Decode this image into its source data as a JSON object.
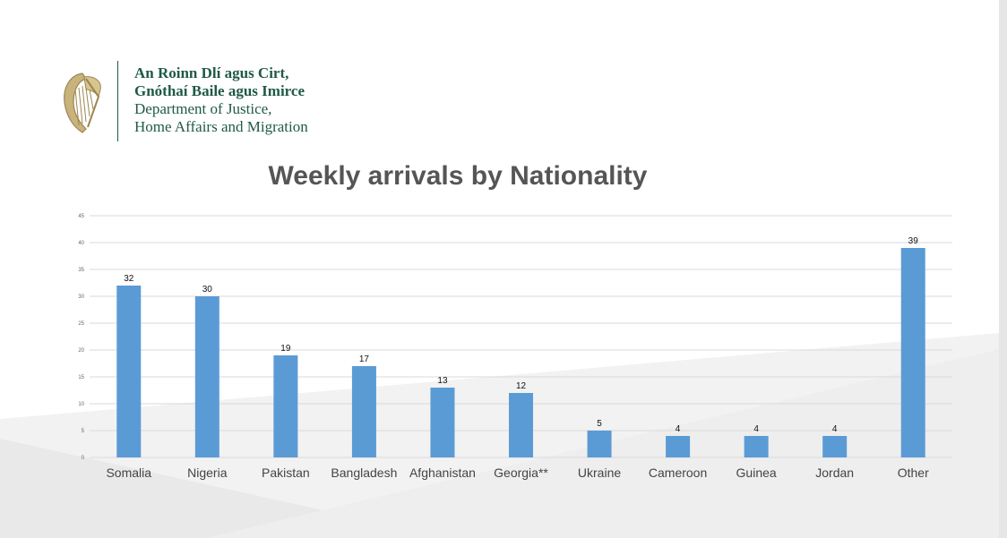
{
  "header": {
    "org_line1": "An Roinn Dlí agus Cirt,",
    "org_line2": "Gnóthaí Baile agus Imirce",
    "org_line3": "Department of Justice,",
    "org_line4": "Home Affairs and Migration"
  },
  "colors": {
    "bar": "#5b9bd5",
    "brand_green": "#1f5a44",
    "title": "#555555",
    "gridline": "#d9d9d9"
  },
  "icons": [
    "harp-emblem-icon"
  ],
  "chart_data": {
    "type": "bar",
    "title": "Weekly arrivals by Nationality",
    "xlabel": "",
    "ylabel": "",
    "categories": [
      "Somalia",
      "Nigeria",
      "Pakistan",
      "Bangladesh",
      "Afghanistan",
      "Georgia**",
      "Ukraine",
      "Cameroon",
      "Guinea",
      "Jordan",
      "Other"
    ],
    "values": [
      32,
      30,
      19,
      17,
      13,
      12,
      5,
      4,
      4,
      4,
      39
    ],
    "ylim": [
      0,
      45
    ],
    "yticks": [
      0,
      5,
      10,
      15,
      20,
      25,
      30,
      35,
      40,
      45
    ],
    "grid": true,
    "legend": "none",
    "data_labels": true
  }
}
